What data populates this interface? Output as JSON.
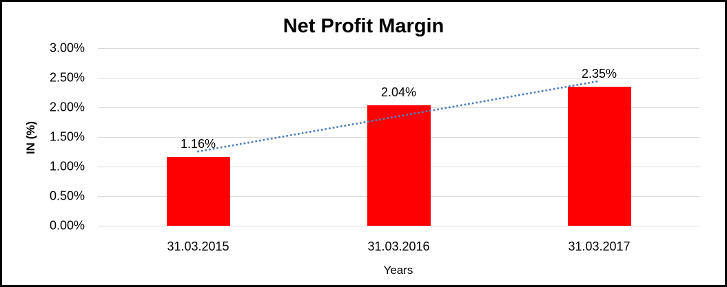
{
  "chart_data": {
    "type": "bar",
    "title": "Net Profit Margin",
    "xlabel": "Years",
    "ylabel": "IN (%)",
    "categories": [
      "31.03.2015",
      "31.03.2016",
      "31.03.2017"
    ],
    "values": [
      1.16,
      2.04,
      2.35
    ],
    "data_labels": [
      "1.16%",
      "2.04%",
      "2.35%"
    ],
    "ylim": [
      0,
      3.0
    ],
    "ytick_step": 0.5,
    "ytick_labels": [
      "0.00%",
      "0.50%",
      "1.00%",
      "1.50%",
      "2.00%",
      "2.50%",
      "3.00%"
    ],
    "grid": true,
    "legend": "none",
    "colors": {
      "bar": "#FF0000",
      "gridline": "#D9D9D9",
      "trendline": "#4F81BD",
      "text": "#000000",
      "frame_border": "#000000",
      "background": "#FFFFFF"
    },
    "trendline": {
      "type": "linear",
      "style": "dotted"
    }
  }
}
